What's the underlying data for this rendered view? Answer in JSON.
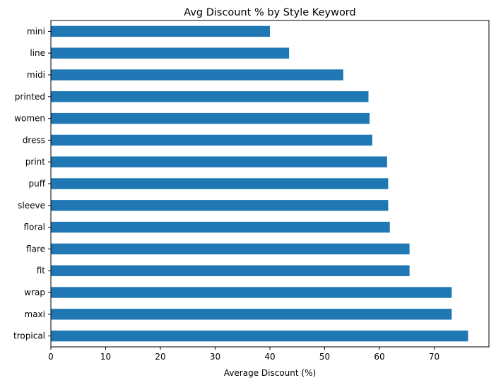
{
  "chart_data": {
    "type": "bar",
    "orientation": "horizontal",
    "title": "Avg Discount % by Style Keyword",
    "xlabel": "Average Discount (%)",
    "ylabel": "",
    "xlim": [
      0,
      80
    ],
    "xticks": [
      0,
      10,
      20,
      30,
      40,
      50,
      60,
      70
    ],
    "bar_color": "#1f77b4",
    "grid": false,
    "categories": [
      "mini",
      "line",
      "midi",
      "printed",
      "women",
      "dress",
      "print",
      "puff",
      "sleeve",
      "floral",
      "flare",
      "fit",
      "wrap",
      "maxi",
      "tropical"
    ],
    "values": [
      40.0,
      43.5,
      53.4,
      58.0,
      58.2,
      58.7,
      61.4,
      61.6,
      61.6,
      61.9,
      65.5,
      65.5,
      73.2,
      73.2,
      76.2
    ]
  }
}
